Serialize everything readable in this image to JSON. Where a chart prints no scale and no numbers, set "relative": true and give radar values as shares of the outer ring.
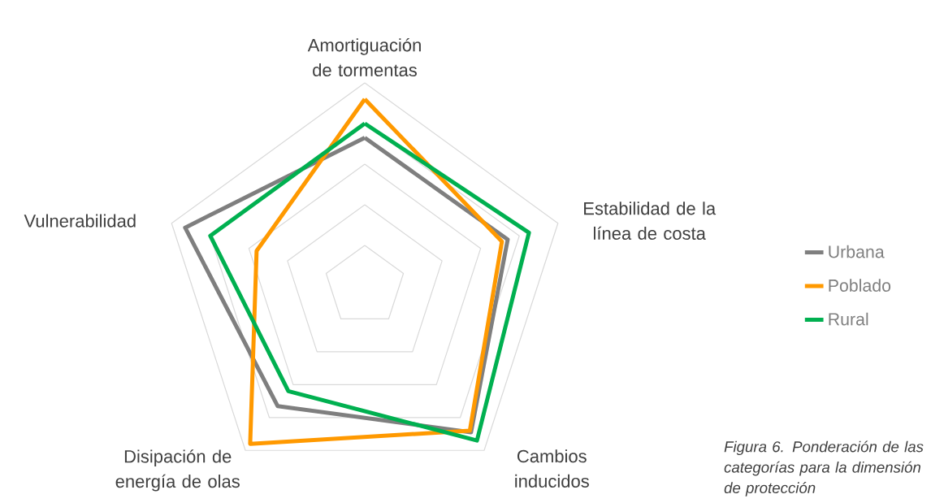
{
  "chart_data": {
    "type": "radar",
    "relative": true,
    "grid": true,
    "legend": "right",
    "line_style": "solid",
    "marker": "none",
    "categories": [
      "Amortiguación de tormentas",
      "Estabilidad de la línea de costa",
      "Cambios inducidos",
      "Disipación de energía de olas",
      "Vulnerabilidad"
    ],
    "series": [
      {
        "name": "Urbana",
        "color": "#7f7f7f",
        "values": [
          0.73,
          0.74,
          0.89,
          0.73,
          0.93
        ]
      },
      {
        "name": "Poblado",
        "color": "#ff9900",
        "values": [
          0.92,
          0.71,
          0.88,
          0.96,
          0.56
        ]
      },
      {
        "name": "Rural",
        "color": "#00b050",
        "values": [
          0.8,
          0.85,
          0.94,
          0.64,
          0.8
        ]
      }
    ],
    "annotations": [
      "Figura 6. Ponderación de las categorías para la dimensión de protección"
    ]
  }
}
